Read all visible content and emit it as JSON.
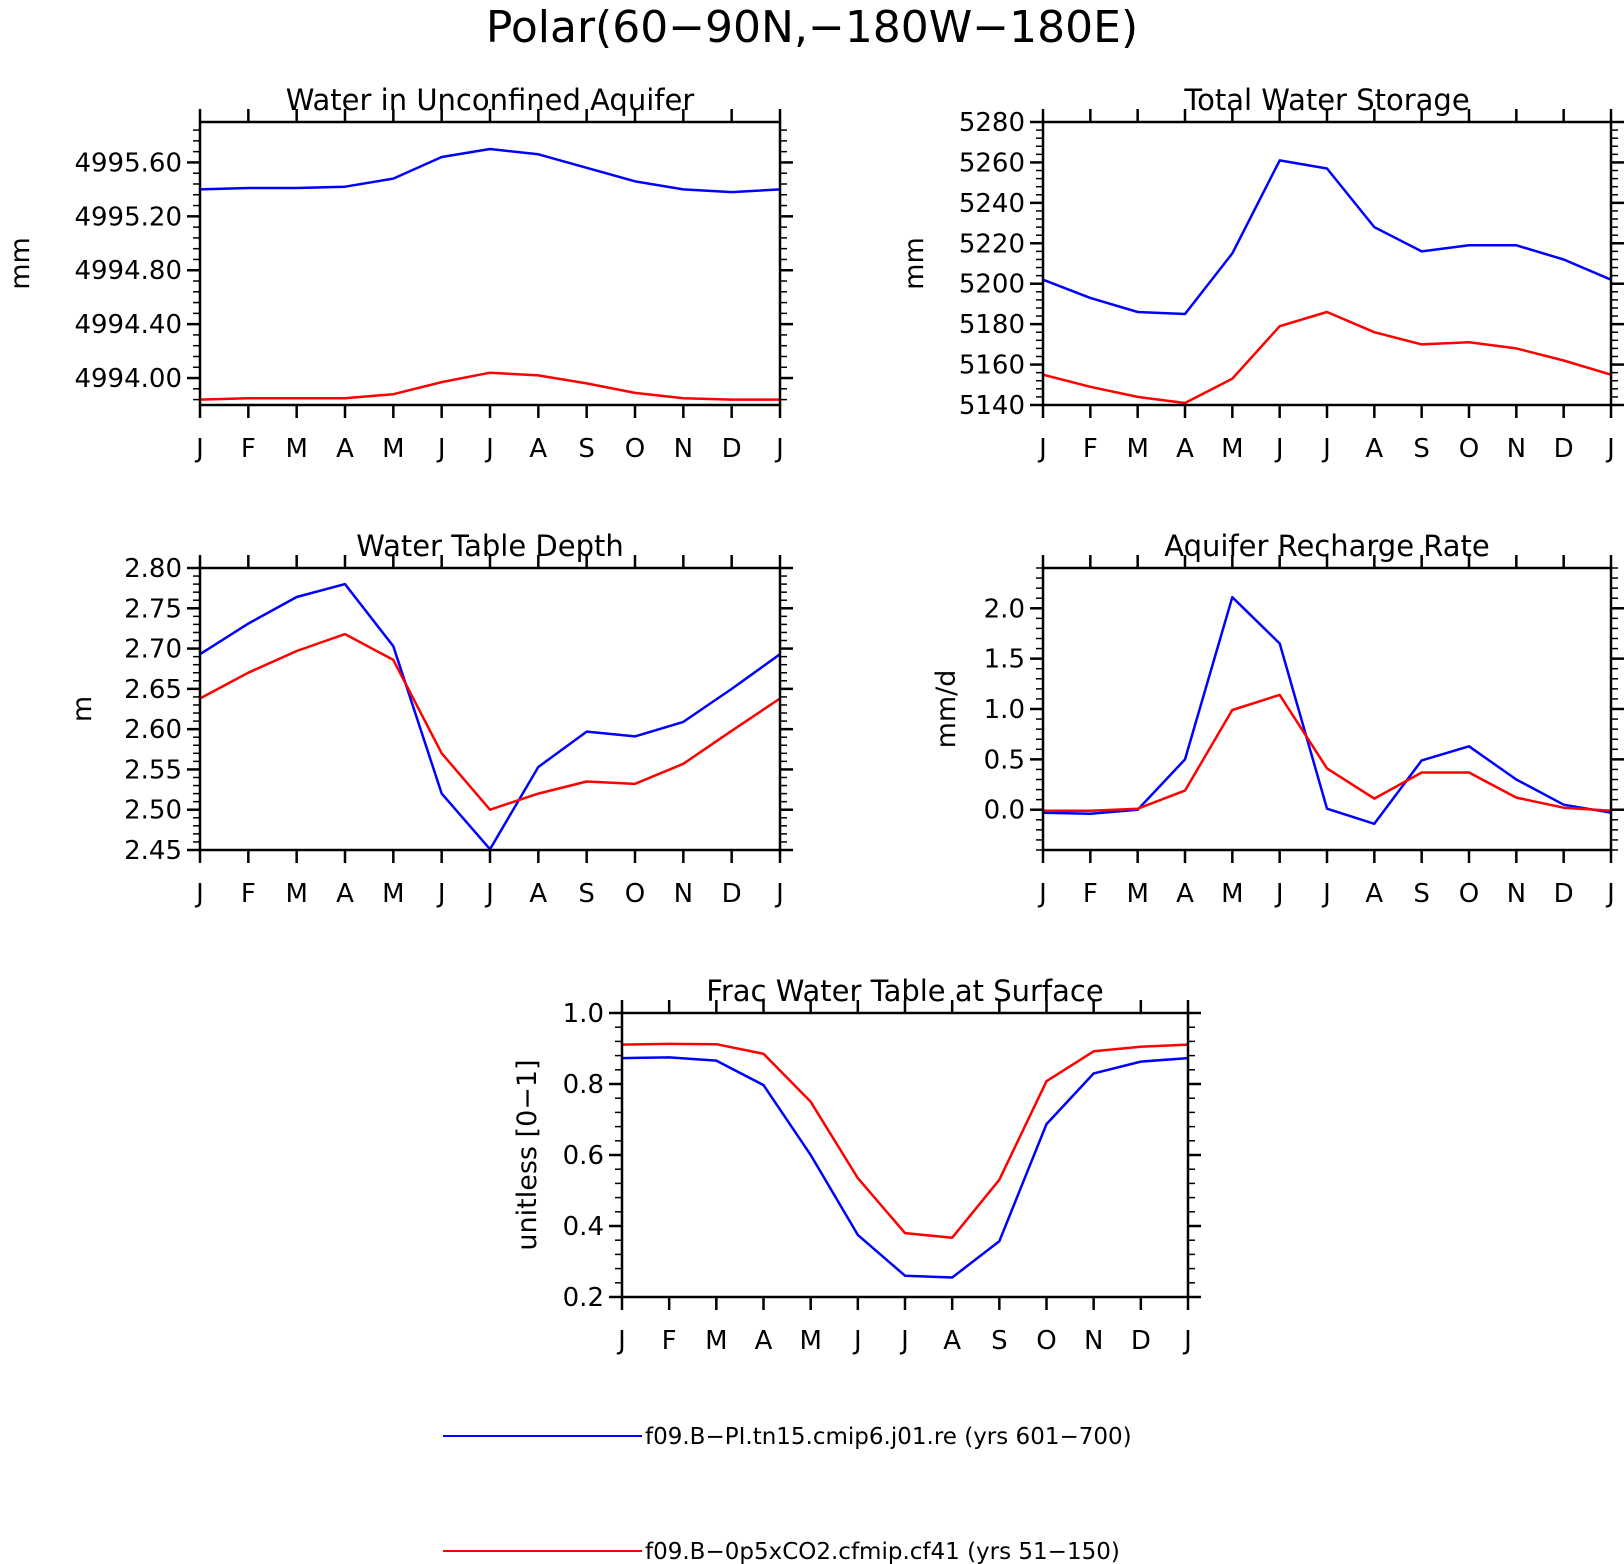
{
  "figure": {
    "title": "Polar(60−90N,−180W−180E)"
  },
  "legend": [
    {
      "text": "f09.B−PI.tn15.cmip6.j01.re (yrs 601−700)",
      "color": "#0000ff"
    },
    {
      "text": "f09.B−0p5xCO2.cfmip.cf41 (yrs 51−150)",
      "color": "#ff0000"
    }
  ],
  "chart_data": [
    {
      "type": "line",
      "title": "Water in Unconfined Aquifer",
      "xlabel": "",
      "ylabel": "mm",
      "categories": [
        "J",
        "F",
        "M",
        "A",
        "M",
        "J",
        "J",
        "A",
        "S",
        "O",
        "N",
        "D",
        "J"
      ],
      "ylim": [
        4993.8,
        4995.9
      ],
      "yticks": [
        4994.0,
        4994.4,
        4994.8,
        4995.2,
        4995.6
      ],
      "ytick_labels": [
        "4994.00",
        "4994.40",
        "4994.80",
        "4995.20",
        "4995.60"
      ],
      "series": [
        {
          "color": "#0000ff",
          "values": [
            4995.4,
            4995.41,
            4995.41,
            4995.42,
            4995.48,
            4995.64,
            4995.7,
            4995.66,
            4995.56,
            4995.46,
            4995.4,
            4995.38,
            4995.4
          ]
        },
        {
          "color": "#ff0000",
          "values": [
            4993.84,
            4993.85,
            4993.85,
            4993.85,
            4993.88,
            4993.97,
            4994.04,
            4994.02,
            4993.96,
            4993.89,
            4993.85,
            4993.84,
            4993.84
          ]
        }
      ]
    },
    {
      "type": "line",
      "title": "Total Water Storage",
      "xlabel": "",
      "ylabel": "mm",
      "categories": [
        "J",
        "F",
        "M",
        "A",
        "M",
        "J",
        "J",
        "A",
        "S",
        "O",
        "N",
        "D",
        "J"
      ],
      "ylim": [
        5140,
        5280
      ],
      "yticks": [
        5140,
        5160,
        5180,
        5200,
        5220,
        5240,
        5260,
        5280
      ],
      "ytick_labels": [
        "5140",
        "5160",
        "5180",
        "5200",
        "5220",
        "5240",
        "5260",
        "5280"
      ],
      "series": [
        {
          "color": "#0000ff",
          "values": [
            5202,
            5193,
            5186,
            5185,
            5215,
            5261,
            5257,
            5228,
            5216,
            5219,
            5219,
            5212,
            5202
          ]
        },
        {
          "color": "#ff0000",
          "values": [
            5155,
            5149,
            5144,
            5141,
            5153,
            5179,
            5186,
            5176,
            5170,
            5171,
            5168,
            5162,
            5155
          ]
        }
      ]
    },
    {
      "type": "line",
      "title": "Water Table Depth",
      "xlabel": "",
      "ylabel": "m",
      "categories": [
        "J",
        "F",
        "M",
        "A",
        "M",
        "J",
        "J",
        "A",
        "S",
        "O",
        "N",
        "D",
        "J"
      ],
      "ylim": [
        2.45,
        2.8
      ],
      "yticks": [
        2.45,
        2.5,
        2.55,
        2.6,
        2.65,
        2.7,
        2.75,
        2.8
      ],
      "ytick_labels": [
        "2.45",
        "2.50",
        "2.55",
        "2.60",
        "2.65",
        "2.70",
        "2.75",
        "2.80"
      ],
      "series": [
        {
          "color": "#0000ff",
          "values": [
            2.693,
            2.731,
            2.764,
            2.78,
            2.703,
            2.52,
            2.451,
            2.553,
            2.597,
            2.591,
            2.609,
            2.65,
            2.693
          ]
        },
        {
          "color": "#ff0000",
          "values": [
            2.638,
            2.67,
            2.697,
            2.718,
            2.686,
            2.57,
            2.5,
            2.52,
            2.535,
            2.532,
            2.557,
            2.598,
            2.638
          ]
        }
      ]
    },
    {
      "type": "line",
      "title": "Aquifer Recharge Rate",
      "xlabel": "",
      "ylabel": "mm/d",
      "categories": [
        "J",
        "F",
        "M",
        "A",
        "M",
        "J",
        "J",
        "A",
        "S",
        "O",
        "N",
        "D",
        "J"
      ],
      "ylim": [
        -0.4,
        2.4
      ],
      "yticks": [
        0.0,
        0.5,
        1.0,
        1.5,
        2.0
      ],
      "ytick_labels": [
        "0.0",
        "0.5",
        "1.0",
        "1.5",
        "2.0"
      ],
      "series": [
        {
          "color": "#0000ff",
          "values": [
            -0.03,
            -0.04,
            0.0,
            0.5,
            2.11,
            1.65,
            0.01,
            -0.14,
            0.49,
            0.63,
            0.3,
            0.05,
            -0.03
          ]
        },
        {
          "color": "#ff0000",
          "values": [
            -0.01,
            -0.01,
            0.01,
            0.19,
            0.99,
            1.14,
            0.41,
            0.11,
            0.37,
            0.37,
            0.12,
            0.02,
            -0.01
          ]
        }
      ]
    },
    {
      "type": "line",
      "title": "Frac Water Table at Surface",
      "xlabel": "",
      "ylabel": "unitless [0−1]",
      "categories": [
        "J",
        "F",
        "M",
        "A",
        "M",
        "J",
        "J",
        "A",
        "S",
        "O",
        "N",
        "D",
        "J"
      ],
      "ylim": [
        0.2,
        1.0
      ],
      "yticks": [
        0.2,
        0.4,
        0.6,
        0.8,
        1.0
      ],
      "ytick_labels": [
        "0.2",
        "0.4",
        "0.6",
        "0.8",
        "1.0"
      ],
      "series": [
        {
          "color": "#0000ff",
          "values": [
            0.873,
            0.875,
            0.866,
            0.797,
            0.6,
            0.375,
            0.26,
            0.255,
            0.357,
            0.687,
            0.83,
            0.863,
            0.873
          ]
        },
        {
          "color": "#ff0000",
          "values": [
            0.911,
            0.913,
            0.912,
            0.885,
            0.75,
            0.535,
            0.38,
            0.367,
            0.53,
            0.808,
            0.892,
            0.905,
            0.911
          ]
        }
      ]
    }
  ]
}
